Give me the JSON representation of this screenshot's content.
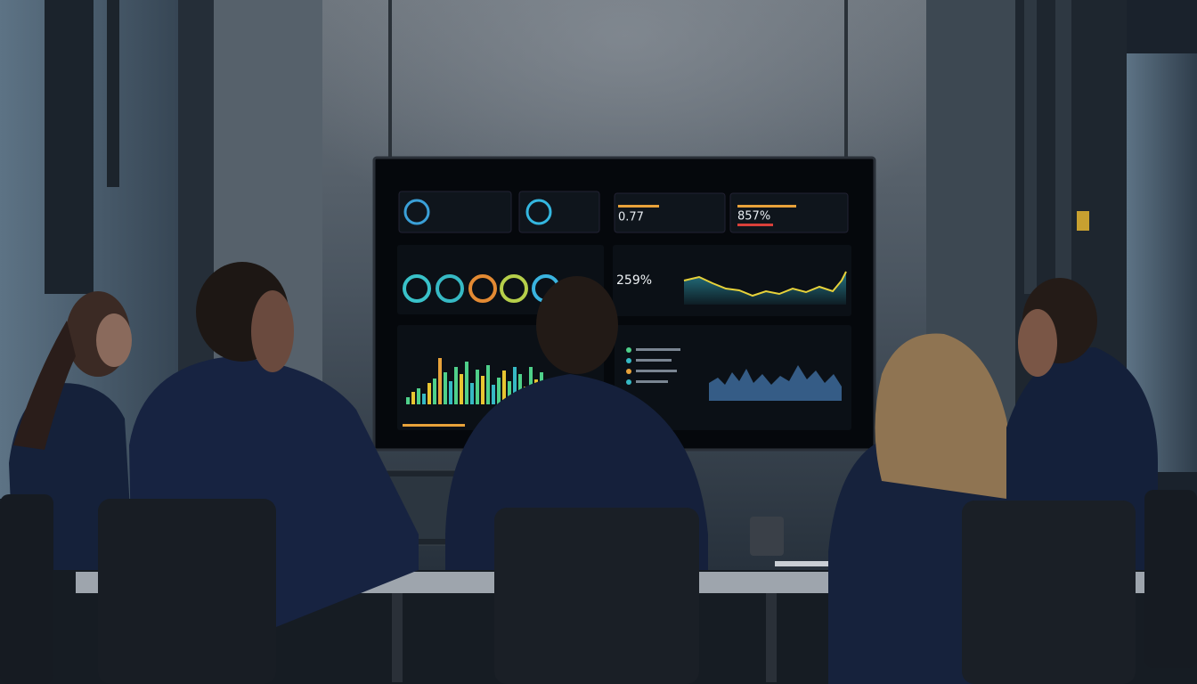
{
  "screen": {
    "metrics": [
      {
        "value": "0.77"
      },
      {
        "value": "857%"
      }
    ],
    "highlight": {
      "value": "259%"
    }
  }
}
